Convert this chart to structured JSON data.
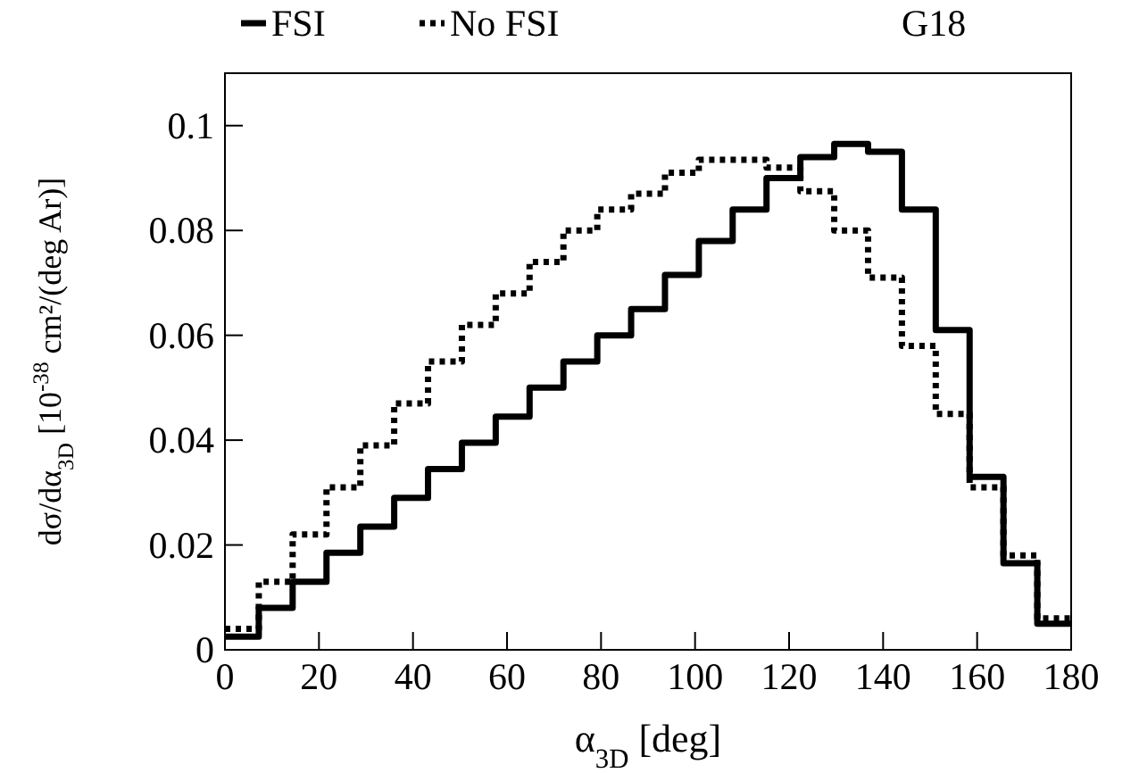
{
  "chart_data": {
    "type": "histogram",
    "xlabel": "α$_{3D}$ [deg]",
    "ylabel": "dσ/dα$_{3D}$ [10$^{-38}$ cm²/(deg Ar)]",
    "annotations": [
      "G18"
    ],
    "bins": [
      0,
      7.2,
      14.4,
      21.6,
      28.8,
      36,
      43.2,
      50.4,
      57.6,
      64.8,
      72,
      79.2,
      86.4,
      93.6,
      100.8,
      108,
      115.2,
      122.4,
      129.6,
      136.8,
      144,
      151.2,
      158.4,
      165.6,
      172.8,
      180
    ],
    "series": [
      {
        "name": "FSI",
        "color": "#000000",
        "line_style": "solid",
        "values": [
          0.0025,
          0.008,
          0.013,
          0.0185,
          0.0235,
          0.029,
          0.0345,
          0.0395,
          0.0445,
          0.05,
          0.055,
          0.06,
          0.065,
          0.0715,
          0.078,
          0.084,
          0.09,
          0.094,
          0.0965,
          0.095,
          0.084,
          0.061,
          0.033,
          0.0165,
          0.005
        ]
      },
      {
        "name": "No FSI",
        "color": "#000000",
        "line_style": "dotted",
        "values": [
          0.004,
          0.013,
          0.022,
          0.031,
          0.039,
          0.047,
          0.055,
          0.062,
          0.068,
          0.074,
          0.08,
          0.084,
          0.087,
          0.091,
          0.0935,
          0.0935,
          0.092,
          0.0875,
          0.08,
          0.071,
          0.058,
          0.045,
          0.031,
          0.018,
          0.006
        ]
      }
    ],
    "xlim": [
      0,
      180
    ],
    "xticks": [
      0,
      20,
      40,
      60,
      80,
      100,
      120,
      140,
      160,
      180
    ],
    "ylim": [
      0,
      0.11
    ],
    "yticks": [
      0,
      0.02,
      0.04,
      0.06,
      0.08,
      0.1
    ],
    "grid": false,
    "legend": "top left"
  }
}
